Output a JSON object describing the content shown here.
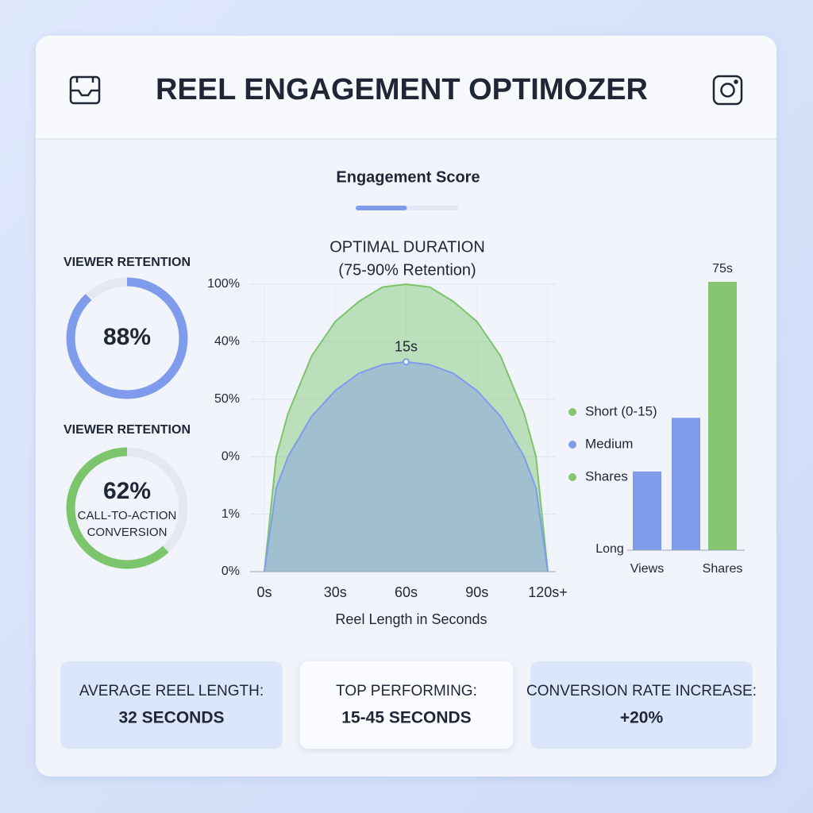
{
  "header": {
    "title": "REEL ENGAGEMENT OPTIMOZER"
  },
  "score": {
    "label": "Engagement Score",
    "value": 50,
    "lim": [
      0,
      100
    ]
  },
  "gauges": [
    {
      "label": "VIEWER RETENTION",
      "value": 88,
      "value_label": "88%",
      "color": "#7f9cec"
    },
    {
      "label": "VIEWER RETENTION",
      "value": 62,
      "value_label": "62%",
      "sublabel": [
        "CALL-TO-ACTION",
        "CONVERSION"
      ],
      "color": "#7cc56d"
    }
  ],
  "area_chart": {
    "type": "area",
    "title": [
      "OPTIMAL DURATION",
      "(75-90% Retention)"
    ],
    "x": [
      0,
      5,
      10,
      20,
      30,
      40,
      50,
      60,
      70,
      80,
      90,
      100,
      110,
      115,
      120
    ],
    "xlim": [
      0,
      120
    ],
    "xticks": [
      {
        "value": 0,
        "label": "0s"
      },
      {
        "value": 30,
        "label": "30s"
      },
      {
        "value": 60,
        "label": "60s"
      },
      {
        "value": 90,
        "label": "90s"
      },
      {
        "value": 120,
        "label": "120s+"
      }
    ],
    "ylim": [
      0,
      100
    ],
    "ylabels": [
      "100%",
      "40%",
      "50%",
      "0%",
      "1%",
      "0%"
    ],
    "xlabel": "Reel Length in Seconds",
    "grid": true,
    "series": [
      {
        "color": "#7cc56d",
        "values": [
          0,
          40,
          55,
          75,
          87,
          94,
          99,
          100,
          99,
          94,
          87,
          75,
          55,
          40,
          0
        ]
      },
      {
        "color": "#7f9cec",
        "values": [
          0,
          29,
          40,
          54,
          63,
          69,
          72,
          73,
          72,
          69,
          63,
          54,
          40,
          29,
          0
        ]
      }
    ],
    "annotation": "15s"
  },
  "bar_chart": {
    "type": "bar",
    "categories": [
      "Views",
      null,
      "Shares"
    ],
    "values": [
      22,
      37,
      75
    ],
    "value_labels": [
      null,
      null,
      "75s"
    ],
    "colors": [
      "#7f9cec",
      "#7f9cec",
      "#86c671"
    ],
    "ylim": [
      0,
      75
    ],
    "ylabel": "Long",
    "legend": [
      {
        "name": "Short (0-15)",
        "color": "#86c671"
      },
      {
        "name": "Medium",
        "color": "#7f9cec"
      },
      {
        "name": "Shares",
        "color": "#86c671"
      }
    ]
  },
  "stats": [
    {
      "label": "AVERAGE REEL LENGTH:",
      "value": "32 SECONDS"
    },
    {
      "label": "TOP PERFORMING:",
      "value": "15-45 SECONDS"
    },
    {
      "label": "CONVERSION RATE INCREASE:",
      "value": "+20%"
    }
  ]
}
